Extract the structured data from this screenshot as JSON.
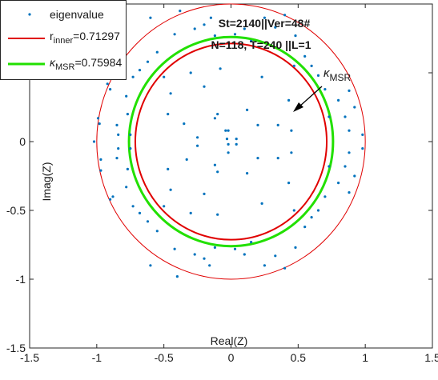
{
  "chart_data": {
    "type": "scatter",
    "title_lines": [
      "St=2140||Ver=48#",
      "N=118, T=240  ||L=1"
    ],
    "xlabel": "Real(Z)",
    "ylabel": "Imag(Z)",
    "xlim": [
      -1.5,
      1.5
    ],
    "ylim": [
      -1.5,
      1.0
    ],
    "x_ticks": [
      "-1.5",
      "-1",
      "-0.5",
      "0",
      "0.5",
      "1",
      "1.5"
    ],
    "y_ticks": [
      "-1.5",
      "-1",
      "-0.5",
      "0",
      "0.5"
    ],
    "grid": false,
    "legend": {
      "placement": "top-left",
      "entries": [
        {
          "label": "eigenvalue",
          "marker": "dot",
          "color": "#0072BD"
        },
        {
          "label_main": "r",
          "label_sub": "inner",
          "label_value": "=0.71297",
          "marker": "line",
          "color": "#E00000"
        },
        {
          "label_main": "κ",
          "label_sub": "MSR",
          "label_value": "=0.75984",
          "marker": "line",
          "color": "#22E000"
        }
      ]
    },
    "annotation": {
      "label_main": "κ",
      "label_sub": "MSR",
      "arrow_from": [
        0.65,
        0.88
      ],
      "arrow_to": [
        0.5,
        0.6
      ]
    },
    "circles": [
      {
        "name": "outer",
        "radius": 1.0,
        "color": "#E00000",
        "width": 1
      },
      {
        "name": "kappa_msr",
        "radius": 0.75984,
        "color": "#22E000",
        "width": 3
      },
      {
        "name": "r_inner",
        "radius": 0.71297,
        "color": "#E00000",
        "width": 2
      }
    ],
    "series": [
      {
        "marker_color": "#0072BD",
        "points": [
          [
            -1.02,
            0.0
          ],
          [
            -0.98,
            0.13
          ],
          [
            -0.97,
            -0.13
          ],
          [
            -0.99,
            0.17
          ],
          [
            -0.97,
            -0.21
          ],
          [
            -0.9,
            0.38
          ],
          [
            -0.92,
            0.42
          ],
          [
            -0.88,
            -0.4
          ],
          [
            -0.9,
            -0.42
          ],
          [
            -0.85,
            0.12
          ],
          [
            -0.85,
            -0.12
          ],
          [
            -0.84,
            0.05
          ],
          [
            -0.84,
            -0.05
          ],
          [
            -0.77,
            0.2
          ],
          [
            -0.77,
            -0.2
          ],
          [
            -0.75,
            0.05
          ],
          [
            -0.75,
            -0.05
          ],
          [
            -0.78,
            0.33
          ],
          [
            -0.78,
            -0.33
          ],
          [
            -0.73,
            0.47
          ],
          [
            -0.73,
            -0.47
          ],
          [
            -0.68,
            0.52
          ],
          [
            -0.68,
            -0.52
          ],
          [
            -0.62,
            0.58
          ],
          [
            -0.62,
            -0.58
          ],
          [
            -0.55,
            0.65
          ],
          [
            -0.55,
            -0.65
          ],
          [
            -0.5,
            0.47
          ],
          [
            -0.5,
            -0.47
          ],
          [
            -0.42,
            0.78
          ],
          [
            -0.42,
            -0.78
          ],
          [
            -0.6,
            0.9
          ],
          [
            -0.6,
            -0.9
          ],
          [
            -0.38,
            0.95
          ],
          [
            -0.4,
            -0.98
          ],
          [
            -0.27,
            0.82
          ],
          [
            -0.27,
            -0.82
          ],
          [
            -0.2,
            0.85
          ],
          [
            -0.2,
            -0.85
          ],
          [
            -0.15,
            0.9
          ],
          [
            -0.16,
            -0.9
          ],
          [
            -0.12,
            0.77
          ],
          [
            -0.12,
            -0.77
          ],
          [
            -0.3,
            0.5
          ],
          [
            -0.3,
            -0.52
          ],
          [
            -0.45,
            0.35
          ],
          [
            -0.45,
            -0.35
          ],
          [
            -0.35,
            0.13
          ],
          [
            -0.33,
            -0.13
          ],
          [
            -0.2,
            0.4
          ],
          [
            -0.2,
            -0.38
          ],
          [
            -0.1,
            0.2
          ],
          [
            -0.1,
            -0.22
          ],
          [
            -0.02,
            0.08
          ],
          [
            -0.02,
            -0.08
          ],
          [
            -0.03,
            0.02
          ],
          [
            -0.02,
            -0.02
          ],
          [
            -0.04,
            0.08
          ],
          [
            -0.08,
            0.53
          ],
          [
            -0.1,
            -0.53
          ],
          [
            0.03,
            0.78
          ],
          [
            0.03,
            -0.78
          ],
          [
            0.1,
            0.82
          ],
          [
            0.1,
            -0.82
          ],
          [
            0.15,
            0.73
          ],
          [
            0.15,
            -0.73
          ],
          [
            0.25,
            0.9
          ],
          [
            0.25,
            -0.9
          ],
          [
            0.33,
            0.83
          ],
          [
            0.33,
            -0.83
          ],
          [
            0.4,
            0.92
          ],
          [
            0.4,
            -0.92
          ],
          [
            0.48,
            0.77
          ],
          [
            0.48,
            -0.77
          ],
          [
            0.55,
            0.62
          ],
          [
            0.55,
            -0.62
          ],
          [
            0.6,
            0.55
          ],
          [
            0.6,
            -0.55
          ],
          [
            0.65,
            0.48
          ],
          [
            0.65,
            -0.5
          ],
          [
            0.7,
            0.38
          ],
          [
            0.7,
            -0.4
          ],
          [
            0.8,
            0.3
          ],
          [
            0.8,
            -0.3
          ],
          [
            0.85,
            0.18
          ],
          [
            0.85,
            -0.18
          ],
          [
            0.88,
            0.08
          ],
          [
            0.88,
            -0.08
          ],
          [
            0.92,
            0.25
          ],
          [
            0.92,
            -0.25
          ],
          [
            0.98,
            0.05
          ],
          [
            0.98,
            -0.05
          ],
          [
            0.88,
            0.37
          ],
          [
            0.88,
            -0.37
          ],
          [
            0.73,
            0.18
          ],
          [
            0.73,
            -0.18
          ],
          [
            0.47,
            0.55
          ],
          [
            0.47,
            -0.5
          ],
          [
            0.43,
            0.3
          ],
          [
            0.43,
            -0.3
          ],
          [
            0.35,
            0.12
          ],
          [
            0.35,
            -0.12
          ],
          [
            0.23,
            0.47
          ],
          [
            0.23,
            -0.45
          ],
          [
            0.2,
            0.12
          ],
          [
            0.2,
            -0.12
          ],
          [
            -0.12,
            0.17
          ],
          [
            -0.12,
            -0.17
          ],
          [
            -0.25,
            0.03
          ],
          [
            -0.25,
            -0.03
          ],
          [
            -0.47,
            0.2
          ],
          [
            -0.47,
            -0.2
          ],
          [
            0.04,
            0.02
          ],
          [
            0.04,
            -0.02
          ],
          [
            0.12,
            0.23
          ],
          [
            0.12,
            -0.23
          ],
          [
            0.45,
            0.08
          ],
          [
            0.45,
            -0.08
          ]
        ]
      }
    ]
  }
}
